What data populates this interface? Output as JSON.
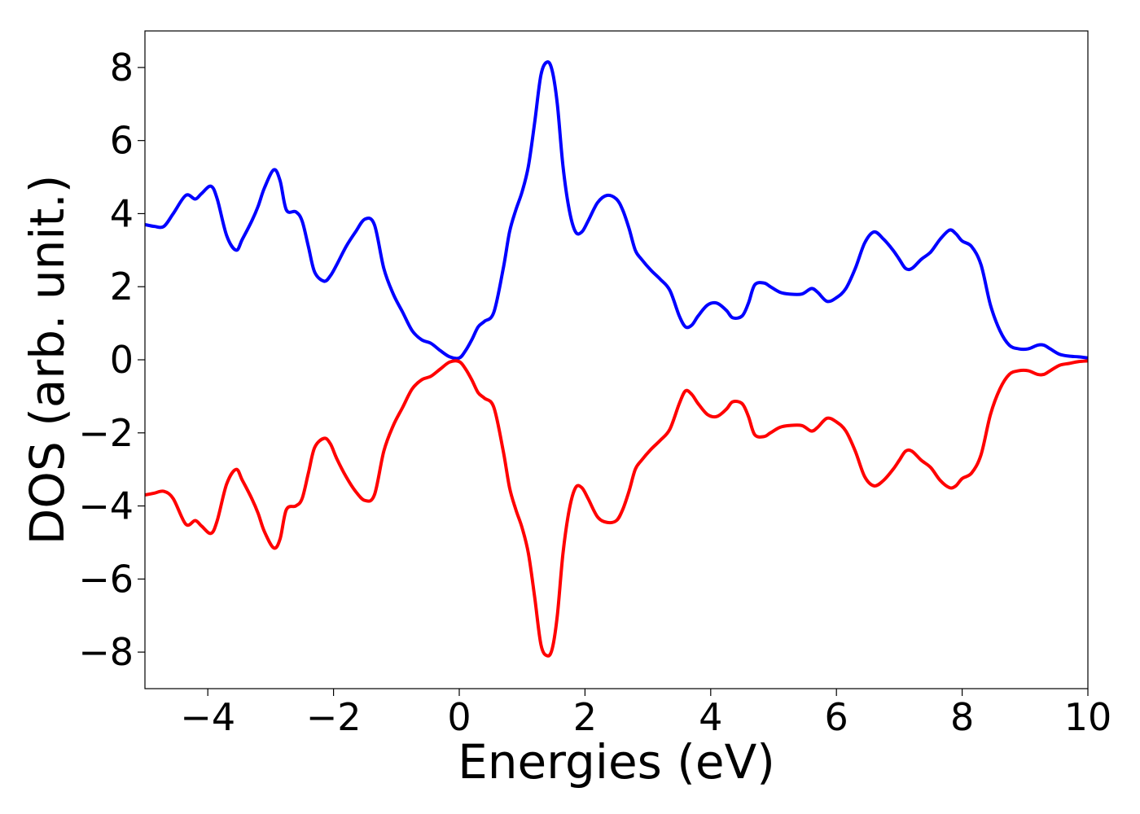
{
  "chart_data": {
    "type": "line",
    "title": "",
    "xlabel": "Energies (eV)",
    "ylabel": "DOS (arb. unit.)",
    "xlim": [
      -5,
      10
    ],
    "ylim": [
      -9,
      9
    ],
    "xticks": [
      -4,
      -2,
      0,
      2,
      4,
      6,
      8,
      10
    ],
    "yticks": [
      -8,
      -6,
      -4,
      -2,
      0,
      2,
      4,
      6,
      8
    ],
    "xtick_labels": [
      "−4",
      "−2",
      "0",
      "2",
      "4",
      "6",
      "8",
      "10"
    ],
    "ytick_labels": [
      "−8",
      "−6",
      "−4",
      "−2",
      "0",
      "2",
      "4",
      "6",
      "8"
    ],
    "grid": false,
    "legend": "none",
    "series": [
      {
        "color": "#0000ff",
        "x": [
          -5.0,
          -4.85,
          -4.7,
          -4.55,
          -4.35,
          -4.2,
          -4.1,
          -3.95,
          -3.85,
          -3.7,
          -3.55,
          -3.45,
          -3.3,
          -3.2,
          -3.1,
          -2.95,
          -2.85,
          -2.75,
          -2.6,
          -2.5,
          -2.4,
          -2.3,
          -2.15,
          -2.05,
          -1.95,
          -1.8,
          -1.65,
          -1.5,
          -1.35,
          -1.2,
          -1.05,
          -0.9,
          -0.75,
          -0.6,
          -0.45,
          -0.3,
          -0.15,
          0.0,
          0.1,
          0.2,
          0.3,
          0.4,
          0.55,
          0.7,
          0.8,
          0.9,
          1.0,
          1.1,
          1.2,
          1.3,
          1.4,
          1.48,
          1.56,
          1.65,
          1.75,
          1.85,
          1.95,
          2.05,
          2.2,
          2.35,
          2.5,
          2.6,
          2.7,
          2.8,
          2.9,
          3.05,
          3.2,
          3.35,
          3.5,
          3.6,
          3.7,
          3.8,
          3.95,
          4.1,
          4.25,
          4.35,
          4.5,
          4.6,
          4.7,
          4.85,
          4.95,
          5.1,
          5.25,
          5.45,
          5.6,
          5.7,
          5.85,
          6.0,
          6.15,
          6.3,
          6.45,
          6.6,
          6.75,
          6.9,
          7.0,
          7.1,
          7.2,
          7.35,
          7.5,
          7.65,
          7.8,
          7.9,
          8.0,
          8.15,
          8.3,
          8.45,
          8.6,
          8.75,
          8.9,
          9.05,
          9.2,
          9.3,
          9.4,
          9.55,
          9.7,
          9.85,
          10.0
        ],
        "y": [
          3.7,
          3.65,
          3.65,
          4.0,
          4.5,
          4.4,
          4.55,
          4.75,
          4.4,
          3.4,
          3.0,
          3.3,
          3.8,
          4.2,
          4.7,
          5.2,
          4.9,
          4.1,
          4.05,
          3.8,
          3.1,
          2.4,
          2.15,
          2.3,
          2.6,
          3.1,
          3.5,
          3.85,
          3.7,
          2.5,
          1.8,
          1.3,
          0.8,
          0.55,
          0.45,
          0.25,
          0.08,
          0.05,
          0.25,
          0.55,
          0.9,
          1.05,
          1.3,
          2.5,
          3.5,
          4.1,
          4.6,
          5.3,
          6.5,
          7.8,
          8.15,
          7.9,
          7.0,
          5.3,
          4.1,
          3.5,
          3.5,
          3.8,
          4.3,
          4.5,
          4.4,
          4.1,
          3.6,
          3.0,
          2.75,
          2.45,
          2.2,
          1.9,
          1.2,
          0.9,
          0.95,
          1.2,
          1.5,
          1.55,
          1.35,
          1.15,
          1.2,
          1.55,
          2.05,
          2.1,
          2.0,
          1.85,
          1.8,
          1.8,
          1.95,
          1.85,
          1.6,
          1.7,
          1.95,
          2.5,
          3.2,
          3.5,
          3.3,
          3.0,
          2.75,
          2.5,
          2.5,
          2.75,
          2.95,
          3.3,
          3.55,
          3.45,
          3.25,
          3.1,
          2.6,
          1.5,
          0.8,
          0.4,
          0.3,
          0.3,
          0.4,
          0.4,
          0.3,
          0.15,
          0.1,
          0.08,
          0.05
        ]
      },
      {
        "color": "#ff0000",
        "x": [
          -5.0,
          -4.85,
          -4.7,
          -4.55,
          -4.35,
          -4.2,
          -4.1,
          -3.95,
          -3.85,
          -3.7,
          -3.55,
          -3.45,
          -3.3,
          -3.2,
          -3.1,
          -2.95,
          -2.85,
          -2.75,
          -2.6,
          -2.5,
          -2.4,
          -2.3,
          -2.15,
          -2.05,
          -1.95,
          -1.8,
          -1.65,
          -1.5,
          -1.35,
          -1.2,
          -1.05,
          -0.9,
          -0.75,
          -0.6,
          -0.45,
          -0.3,
          -0.15,
          0.0,
          0.1,
          0.2,
          0.3,
          0.4,
          0.55,
          0.7,
          0.8,
          0.9,
          1.0,
          1.1,
          1.2,
          1.3,
          1.4,
          1.48,
          1.56,
          1.65,
          1.75,
          1.85,
          1.95,
          2.05,
          2.2,
          2.35,
          2.5,
          2.6,
          2.7,
          2.8,
          2.9,
          3.05,
          3.2,
          3.35,
          3.5,
          3.6,
          3.7,
          3.8,
          3.95,
          4.1,
          4.25,
          4.35,
          4.5,
          4.6,
          4.7,
          4.85,
          4.95,
          5.1,
          5.25,
          5.45,
          5.6,
          5.7,
          5.85,
          6.0,
          6.15,
          6.3,
          6.45,
          6.6,
          6.75,
          6.9,
          7.0,
          7.1,
          7.2,
          7.35,
          7.5,
          7.65,
          7.8,
          7.9,
          8.0,
          8.15,
          8.3,
          8.45,
          8.6,
          8.75,
          8.9,
          9.05,
          9.2,
          9.3,
          9.4,
          9.55,
          9.7,
          9.85,
          10.0
        ],
        "y": [
          -3.7,
          -3.65,
          -3.6,
          -3.8,
          -4.5,
          -4.4,
          -4.55,
          -4.75,
          -4.4,
          -3.4,
          -3.0,
          -3.3,
          -3.8,
          -4.2,
          -4.7,
          -5.15,
          -4.9,
          -4.1,
          -4.0,
          -3.8,
          -3.1,
          -2.4,
          -2.15,
          -2.3,
          -2.7,
          -3.2,
          -3.6,
          -3.85,
          -3.7,
          -2.5,
          -1.8,
          -1.3,
          -0.8,
          -0.55,
          -0.45,
          -0.25,
          -0.06,
          -0.05,
          -0.25,
          -0.55,
          -0.9,
          -1.05,
          -1.3,
          -2.5,
          -3.5,
          -4.1,
          -4.6,
          -5.3,
          -6.5,
          -7.8,
          -8.1,
          -7.9,
          -7.0,
          -5.3,
          -4.1,
          -3.5,
          -3.5,
          -3.8,
          -4.3,
          -4.45,
          -4.4,
          -4.1,
          -3.6,
          -3.0,
          -2.75,
          -2.45,
          -2.2,
          -1.9,
          -1.2,
          -0.85,
          -0.95,
          -1.2,
          -1.5,
          -1.55,
          -1.35,
          -1.15,
          -1.2,
          -1.55,
          -2.05,
          -2.1,
          -2.0,
          -1.85,
          -1.8,
          -1.8,
          -1.95,
          -1.85,
          -1.6,
          -1.7,
          -1.95,
          -2.5,
          -3.2,
          -3.45,
          -3.3,
          -3.0,
          -2.75,
          -2.5,
          -2.5,
          -2.75,
          -2.95,
          -3.3,
          -3.5,
          -3.45,
          -3.25,
          -3.1,
          -2.6,
          -1.5,
          -0.8,
          -0.4,
          -0.3,
          -0.3,
          -0.4,
          -0.4,
          -0.3,
          -0.15,
          -0.1,
          -0.05,
          -0.03
        ]
      }
    ]
  }
}
